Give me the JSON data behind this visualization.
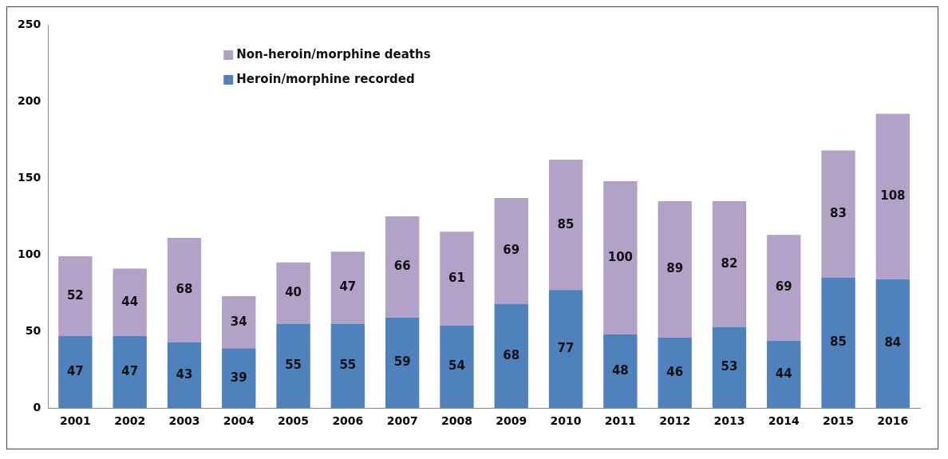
{
  "chart_data": {
    "type": "bar",
    "stacked": true,
    "categories": [
      "2001",
      "2002",
      "2003",
      "2004",
      "2005",
      "2006",
      "2007",
      "2008",
      "2009",
      "2010",
      "2011",
      "2012",
      "2013",
      "2014",
      "2015",
      "2016"
    ],
    "series": [
      {
        "name": "Heroin/morphine recorded",
        "color": "#4f81bd",
        "values": [
          47,
          47,
          43,
          39,
          55,
          55,
          59,
          54,
          68,
          77,
          48,
          46,
          53,
          44,
          85,
          84
        ]
      },
      {
        "name": "Non-heroin/morphine deaths",
        "color": "#b3a2c7",
        "values": [
          52,
          44,
          68,
          34,
          40,
          47,
          66,
          61,
          69,
          85,
          100,
          89,
          82,
          69,
          83,
          108
        ]
      }
    ],
    "ylim": [
      0,
      250
    ],
    "yticks": [
      0,
      50,
      100,
      150,
      200,
      250
    ],
    "grid": false,
    "legend": "top left",
    "data_labels": true
  }
}
